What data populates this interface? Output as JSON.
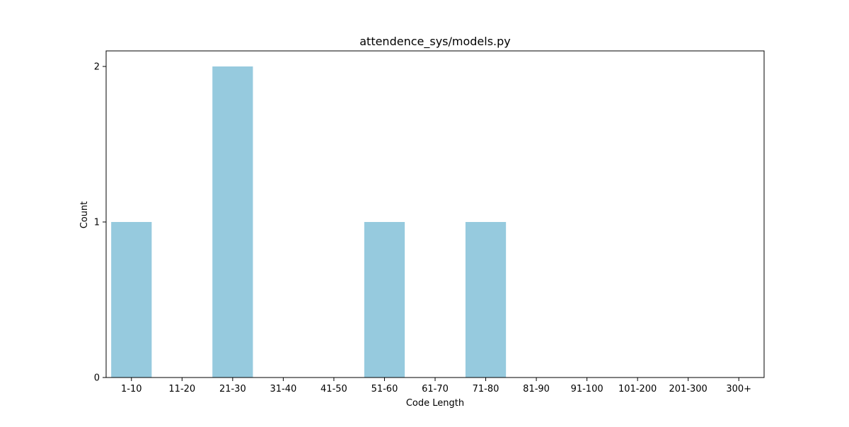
{
  "chart_data": {
    "type": "bar",
    "title": "attendence_sys/models.py",
    "xlabel": "Code Length",
    "ylabel": "Count",
    "categories": [
      "1-10",
      "11-20",
      "21-30",
      "31-40",
      "41-50",
      "51-60",
      "61-70",
      "71-80",
      "81-90",
      "91-100",
      "101-200",
      "201-300",
      "300+"
    ],
    "values": [
      1,
      0,
      2,
      0,
      0,
      1,
      0,
      1,
      0,
      0,
      0,
      0,
      0
    ],
    "ylim": [
      0,
      2.1
    ],
    "yticks": [
      "0",
      "1",
      "2"
    ],
    "grid": false,
    "bar_color": "#96cade"
  }
}
